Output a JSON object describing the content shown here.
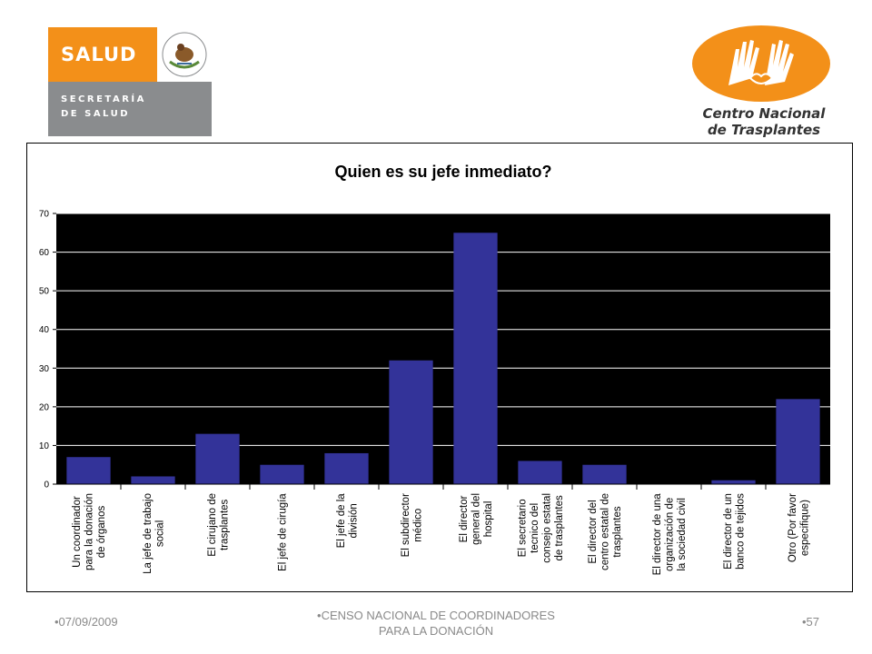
{
  "logos": {
    "salud": {
      "name": "SALUD",
      "line1": "SECRETARÍA",
      "line2": "DE SALUD"
    },
    "cnt": {
      "line1": "Centro Nacional",
      "line2": "de Trasplantes"
    }
  },
  "footer": {
    "date": "•07/09/2009",
    "center_line1": "•CENSO NACIONAL DE COORDINADORES",
    "center_line2": "PARA LA DONACIÓN",
    "page": "•57"
  },
  "colors": {
    "bar": "#333399",
    "plot_bg": "#000000",
    "grid": "#ffffff",
    "brand_orange": "#f39019",
    "brand_grey": "#8a8c8e"
  },
  "chart_data": {
    "type": "bar",
    "title": "Quien es su jefe inmediato?",
    "ylim": [
      0,
      70
    ],
    "yticks": [
      0,
      10,
      20,
      30,
      40,
      50,
      60,
      70
    ],
    "grid": true,
    "categories": [
      [
        "Un coordinador",
        "para la donación",
        "de órganos"
      ],
      [
        "La jefe de trabajo",
        "social"
      ],
      [
        "El cirujano de",
        "trasplantes"
      ],
      [
        "El jefe de cirugía"
      ],
      [
        "El jefe de la",
        "división"
      ],
      [
        "El subdirector",
        "médico"
      ],
      [
        "El director",
        "general del",
        "hospital"
      ],
      [
        "El secretario",
        "tecnico del",
        "consejo estatal",
        "de trasplantes"
      ],
      [
        "El director del",
        "centro estatal de",
        "trasplantes"
      ],
      [
        "El director de una",
        "organización de",
        "la sociedad civil"
      ],
      [
        "El director de un",
        "banco de tejidos"
      ],
      [
        "Otro (Por favor",
        "especifique)"
      ]
    ],
    "values": [
      7,
      2,
      13,
      5,
      8,
      32,
      65,
      6,
      5,
      0,
      1,
      22
    ]
  }
}
